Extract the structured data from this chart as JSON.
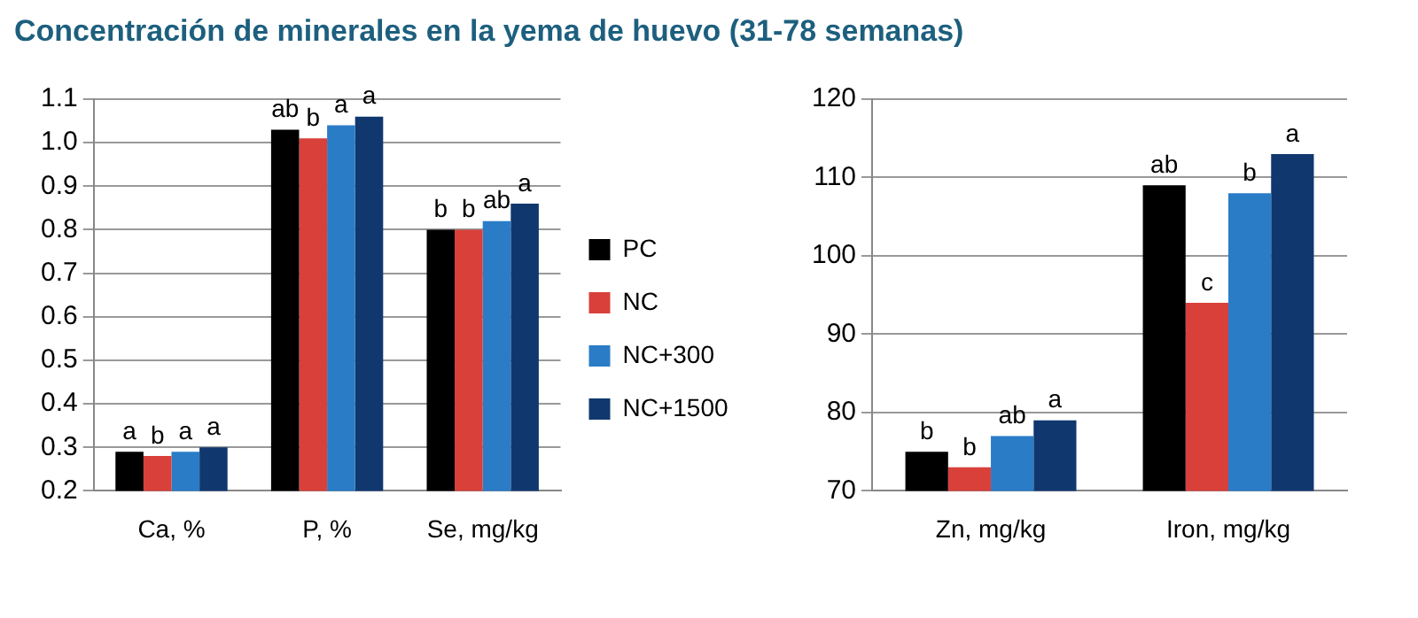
{
  "chart_data": [
    {
      "type": "bar",
      "title": "Concentración de minerales en la yema de huevo (31-78 semanas)",
      "categories": [
        "Ca, %",
        "P, %",
        "Se, mg/kg"
      ],
      "ylim": [
        0.2,
        1.1
      ],
      "yticks": [
        {
          "value": 0.2,
          "label": "0.2"
        },
        {
          "value": 0.3,
          "label": "0.3"
        },
        {
          "value": 0.4,
          "label": "0.4"
        },
        {
          "value": 0.5,
          "label": "0.5"
        },
        {
          "value": 0.6,
          "label": "0.6"
        },
        {
          "value": 0.7,
          "label": "0.7"
        },
        {
          "value": 0.8,
          "label": "0.8"
        },
        {
          "value": 0.9,
          "label": "0.9"
        },
        {
          "value": 1.0,
          "label": "1.0"
        },
        {
          "value": 1.1,
          "label": "1.1"
        }
      ],
      "grid": "y",
      "legend": "right",
      "series": [
        {
          "name": "PC",
          "color": "#000000",
          "values": [
            0.29,
            1.03,
            0.8
          ],
          "value_labels": [
            "a",
            "ab",
            "b"
          ]
        },
        {
          "name": "NC",
          "color": "#d9403a",
          "values": [
            0.28,
            1.01,
            0.8
          ],
          "value_labels": [
            "b",
            "b",
            "b"
          ]
        },
        {
          "name": "NC+300",
          "color": "#2a7cc7",
          "values": [
            0.29,
            1.04,
            0.82
          ],
          "value_labels": [
            "a",
            "a",
            "ab"
          ]
        },
        {
          "name": "NC+1500",
          "color": "#10386e",
          "values": [
            0.3,
            1.06,
            0.86
          ],
          "value_labels": [
            "a",
            "a",
            "a"
          ]
        }
      ]
    },
    {
      "type": "bar",
      "categories": [
        "Zn, mg/kg",
        "Iron, mg/kg"
      ],
      "ylim": [
        70,
        120
      ],
      "yticks": [
        70,
        80,
        90,
        100,
        110,
        120
      ],
      "grid": "y",
      "series": [
        {
          "color": "#000000",
          "values": [
            75,
            109
          ],
          "value_labels": [
            "b",
            "ab"
          ]
        },
        {
          "color": "#d9403a",
          "values": [
            73,
            94
          ],
          "value_labels": [
            "b",
            "c"
          ]
        },
        {
          "color": "#2a7cc7",
          "values": [
            77,
            108
          ],
          "value_labels": [
            "ab",
            "b"
          ]
        },
        {
          "color": "#10386e",
          "values": [
            79,
            113
          ],
          "value_labels": [
            "a",
            "a"
          ]
        }
      ]
    }
  ]
}
